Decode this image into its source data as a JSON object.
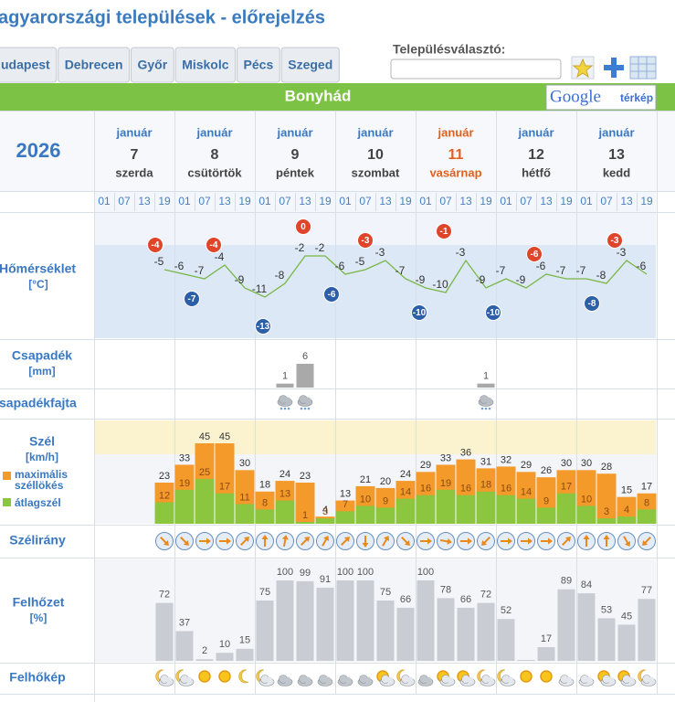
{
  "header": {
    "title": "agyarországi települések - előrejelzés"
  },
  "tabs": [
    "udapest",
    "Debrecen",
    "Győr",
    "Miskolc",
    "Pécs",
    "Szeged"
  ],
  "selector": {
    "label": "Településválasztó:"
  },
  "location": "Bonyhád",
  "map_button": {
    "brand": "Google",
    "label": "térkép"
  },
  "forecast": {
    "year": "2026",
    "days": [
      {
        "month": "január",
        "day": 7,
        "weekday": "szerda"
      },
      {
        "month": "január",
        "day": 8,
        "weekday": "csütörtök"
      },
      {
        "month": "január",
        "day": 9,
        "weekday": "péntek"
      },
      {
        "month": "január",
        "day": 10,
        "weekday": "szombat"
      },
      {
        "month": "január",
        "day": 11,
        "weekday": "vasárnap",
        "color": "#e0601e"
      },
      {
        "month": "január",
        "day": 12,
        "weekday": "hétfő"
      },
      {
        "month": "január",
        "day": 13,
        "weekday": "kedd"
      }
    ],
    "hours": [
      "01",
      "07",
      "13",
      "19"
    ],
    "temperature": {
      "label": "Hőmérséklet",
      "unit": "[°C]",
      "color": "#7ab648",
      "values": [
        null,
        null,
        null,
        -5,
        -6,
        -7,
        -4,
        -9,
        -11,
        -8,
        -2,
        -2,
        -6,
        -5,
        -3,
        -7,
        -9,
        -10,
        -3,
        -9,
        -7,
        -9,
        -6,
        -7,
        -7,
        -8,
        -3,
        -6
      ],
      "daily_max": [
        -4,
        -4,
        0,
        -3,
        -1,
        -6,
        -3
      ],
      "daily_min": [
        null,
        -7,
        -13,
        -6,
        -10,
        -10,
        -8
      ],
      "max_color": "#e0452c",
      "min_color": "#2d5fa8"
    },
    "precipitation": {
      "label": "Csapadék",
      "unit": "[mm]",
      "color": "#a9a9a9",
      "values": [
        null,
        null,
        null,
        null,
        null,
        null,
        null,
        null,
        null,
        1,
        6,
        null,
        null,
        null,
        null,
        null,
        null,
        null,
        null,
        1,
        null,
        null,
        null,
        null,
        null,
        null,
        null,
        null
      ]
    },
    "precipitation_type": {
      "label": "sapadékfajta"
    },
    "wind": {
      "label": "Szél",
      "unit": "[km/h]",
      "series": [
        {
          "name": "maximális széllökés",
          "color": "#f39a2a",
          "values": [
            null,
            null,
            null,
            23,
            33,
            45,
            45,
            30,
            18,
            24,
            23,
            4,
            13,
            21,
            20,
            24,
            29,
            33,
            36,
            31,
            32,
            29,
            26,
            30,
            30,
            28,
            15,
            17
          ]
        },
        {
          "name": "átlagszél",
          "color": "#8cc63f",
          "values": [
            null,
            null,
            null,
            12,
            19,
            25,
            17,
            11,
            8,
            13,
            1,
            3,
            7,
            10,
            9,
            14,
            16,
            19,
            16,
            18,
            16,
            14,
            9,
            17,
            10,
            3,
            4,
            8
          ]
        }
      ]
    },
    "wind_direction": {
      "label": "Szélirány",
      "degrees": [
        null,
        null,
        null,
        45,
        45,
        0,
        0,
        -45,
        -90,
        -80,
        -45,
        -60,
        -45,
        90,
        -60,
        45,
        0,
        10,
        0,
        135,
        0,
        0,
        0,
        -45,
        -90,
        -90,
        60,
        135
      ]
    },
    "cloud_cover": {
      "label": "Felhőzet",
      "unit": "[%]",
      "color": "#c9cdd3",
      "values": [
        null,
        null,
        null,
        72,
        37,
        2,
        10,
        15,
        75,
        100,
        99,
        91,
        100,
        100,
        75,
        66,
        100,
        78,
        66,
        72,
        52,
        0,
        17,
        89,
        84,
        53,
        45,
        77
      ]
    },
    "cloud_image": {
      "label": "Felhőkép"
    }
  }
}
